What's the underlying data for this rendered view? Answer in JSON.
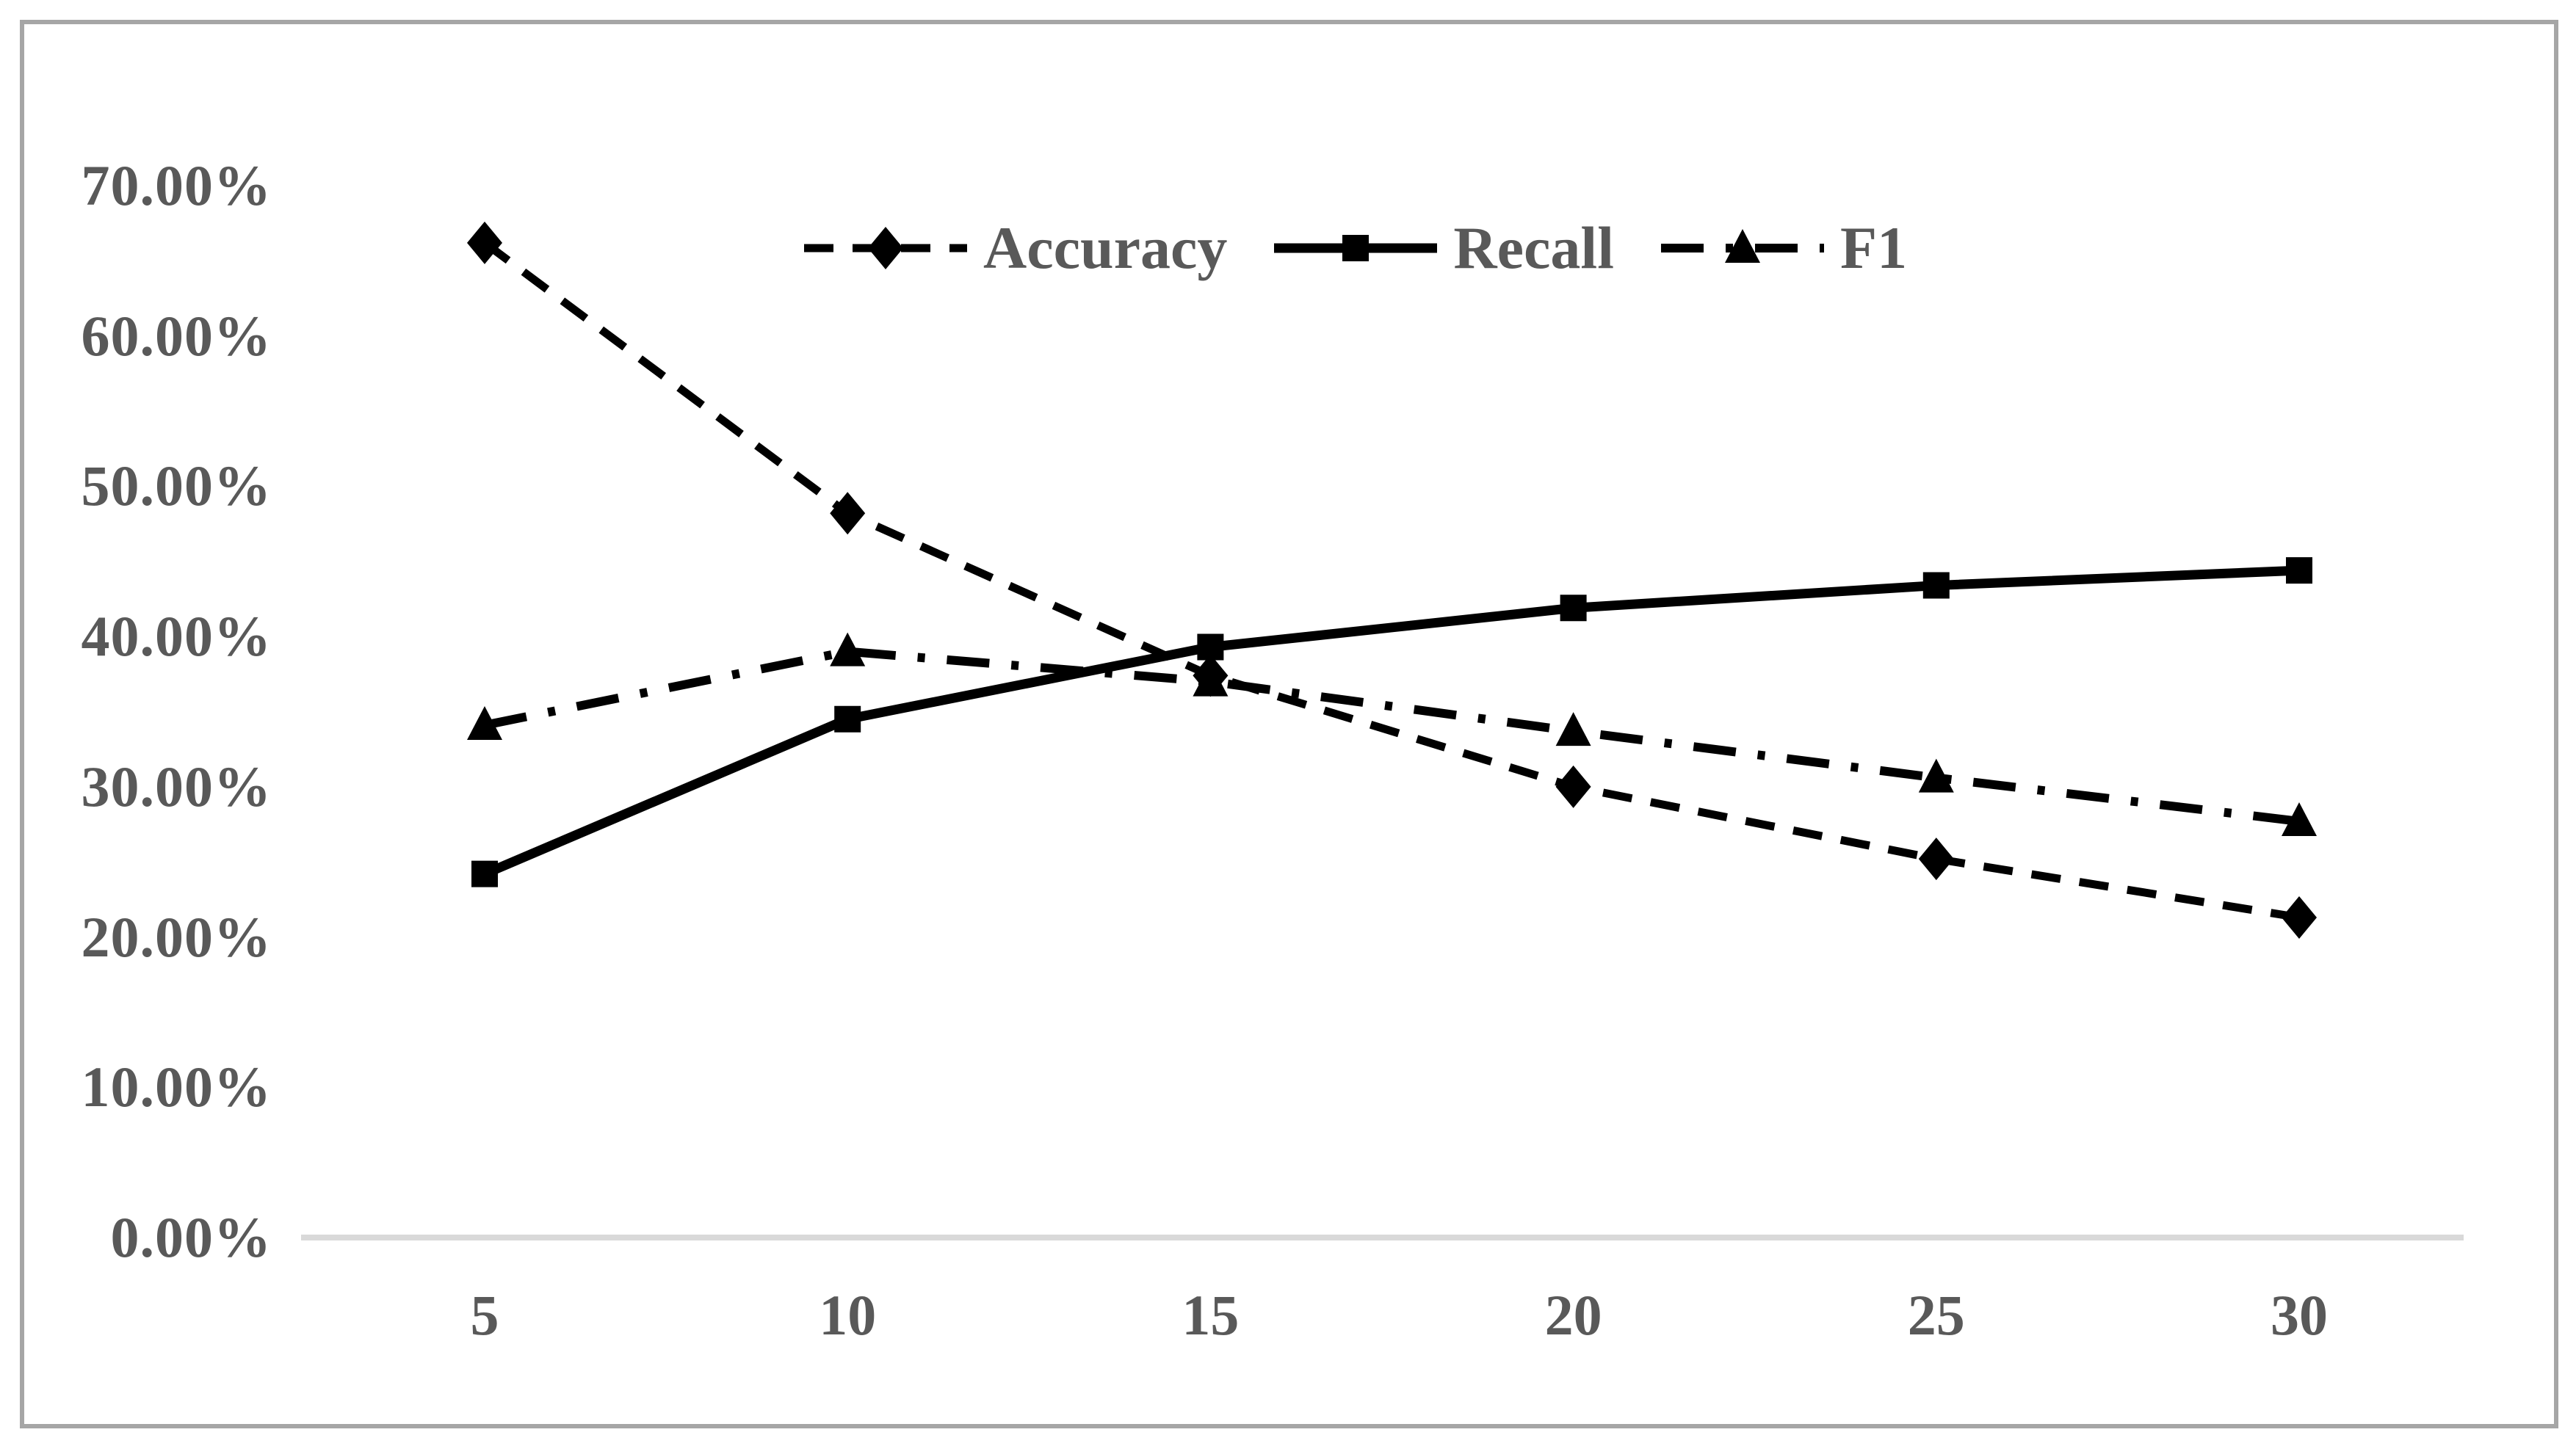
{
  "colors": {
    "background": "#ffffff",
    "frame_border": "#a6a6a6",
    "axis_line": "#d9d9d9",
    "text": "#595959",
    "series": "#000000"
  },
  "chart_data": {
    "type": "line",
    "x": [
      5,
      10,
      15,
      20,
      25,
      30
    ],
    "x_tick_labels": [
      "5",
      "10",
      "15",
      "20",
      "25",
      "30"
    ],
    "y_tick_labels": [
      "0.00%",
      "10.00%",
      "20.00%",
      "30.00%",
      "40.00%",
      "50.00%",
      "60.00%",
      "70.00%"
    ],
    "ylim": [
      0,
      70
    ],
    "y_unit": "%",
    "grid": false,
    "legend_position": "top-center",
    "series": [
      {
        "name": "Accuracy",
        "marker": "diamond",
        "line_style": "dashed",
        "values": [
          66.2,
          48.2,
          37.4,
          30.0,
          25.2,
          21.3
        ]
      },
      {
        "name": "Recall",
        "marker": "square",
        "line_style": "solid",
        "values": [
          24.2,
          34.5,
          39.3,
          41.9,
          43.4,
          44.4
        ]
      },
      {
        "name": "F1",
        "marker": "triangle",
        "line_style": "dash-dot",
        "values": [
          34.1,
          39.0,
          37.0,
          33.7,
          30.6,
          27.7
        ]
      }
    ]
  }
}
